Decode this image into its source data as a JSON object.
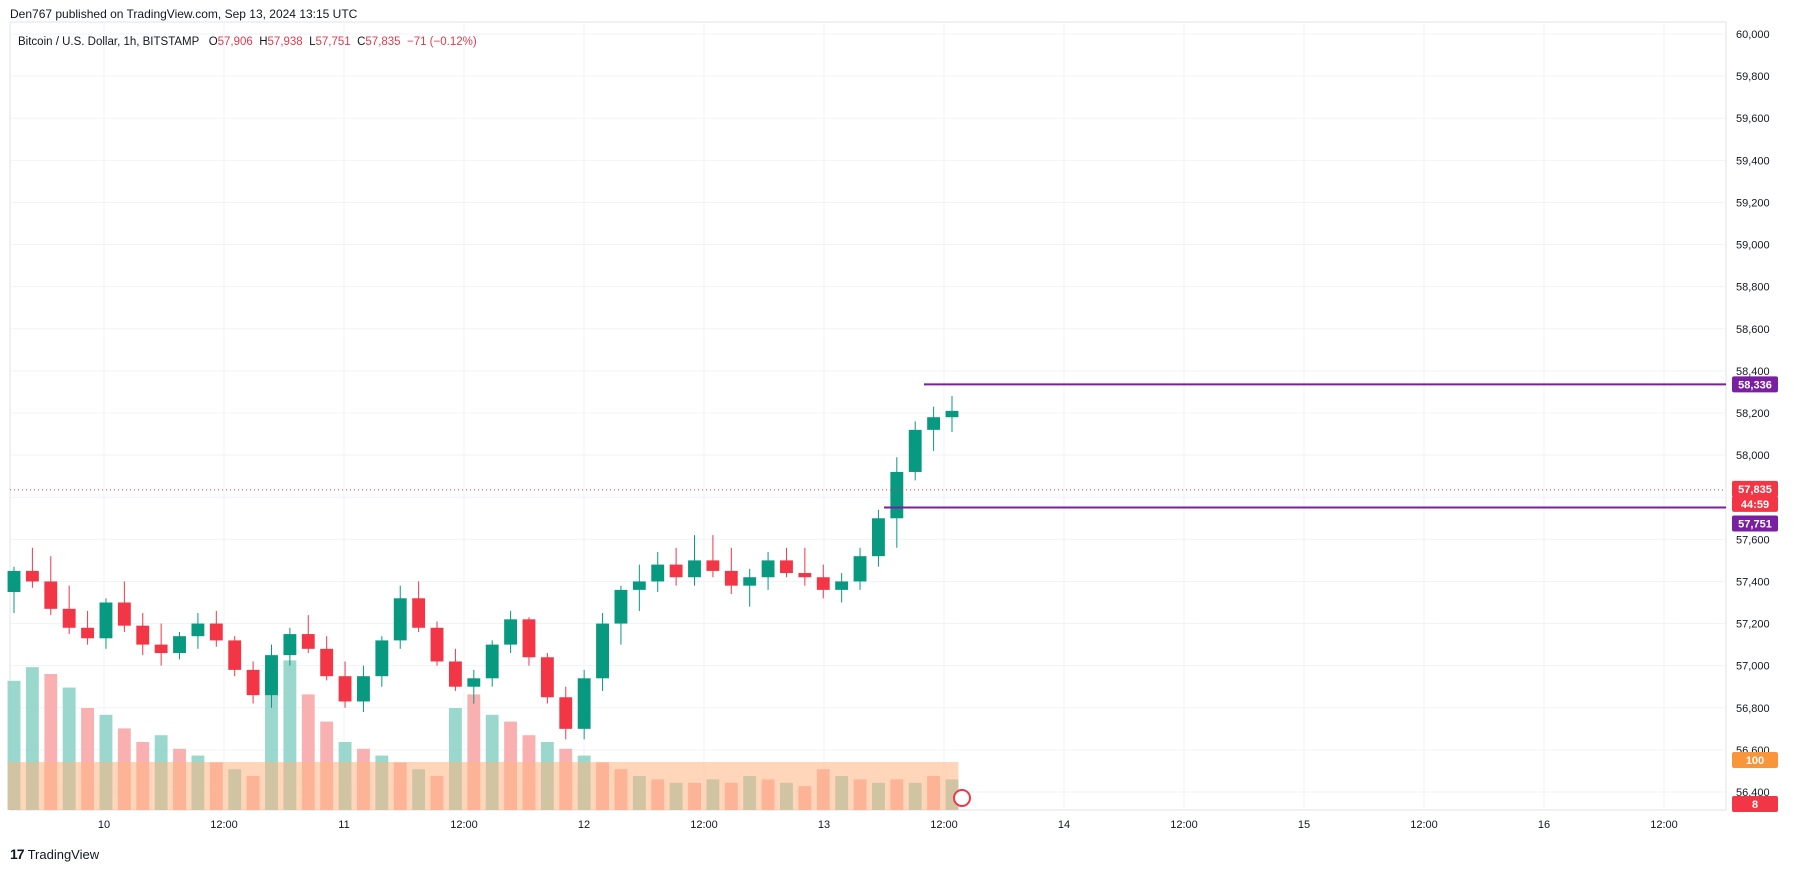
{
  "header": {
    "published": "Den767 published on TradingView.com, Sep 13, 2024 13:15 UTC"
  },
  "legend": {
    "symbol": "Bitcoin / U.S. Dollar, 1h, BITSTAMP",
    "open_label": "O",
    "open": "57,906",
    "high_label": "H",
    "high": "57,938",
    "low_label": "L",
    "low": "57,751",
    "close_label": "C",
    "close": "57,835",
    "change": "−71 (−0.12%)"
  },
  "colors": {
    "up": "#089981",
    "down": "#f23645",
    "volume_up": "#8fd3c8",
    "volume_down": "#f7a9a7",
    "volume_ma": "#ffb482",
    "level_line": "#7b1fa2",
    "grid": "#f0f3fa"
  },
  "footer": {
    "brand": "TradingView"
  },
  "chart_data": {
    "type": "candlestick",
    "y_ticks": [
      "60,000",
      "59,800",
      "59,600",
      "59,400",
      "59,200",
      "59,000",
      "58,800",
      "58,600",
      "58,400",
      "58,200",
      "58,000",
      "57,800",
      "57,600",
      "57,400",
      "57,200",
      "57,000",
      "56,800",
      "56,600",
      "56,400"
    ],
    "ylim": [
      56350,
      60020
    ],
    "x_ticks": [
      "10",
      "12:00",
      "11",
      "12:00",
      "12",
      "12:00",
      "13",
      "12:00",
      "14",
      "12:00",
      "15",
      "12:00",
      "16",
      "12:00"
    ],
    "price_labels": {
      "resistance": "58,336",
      "current": "57,835",
      "countdown": "44:59",
      "support": "57,751",
      "volume_ma_value": "100",
      "volume_value": "8"
    },
    "levels": {
      "resistance": 58336,
      "support": 57751,
      "current": 57835
    },
    "candles": [
      [
        57350,
        57470,
        57250,
        57450
      ],
      [
        57450,
        57560,
        57370,
        57400
      ],
      [
        57400,
        57520,
        57240,
        57270
      ],
      [
        57270,
        57380,
        57150,
        57180
      ],
      [
        57180,
        57260,
        57100,
        57130
      ],
      [
        57130,
        57320,
        57080,
        57300
      ],
      [
        57300,
        57400,
        57160,
        57190
      ],
      [
        57190,
        57250,
        57050,
        57100
      ],
      [
        57100,
        57200,
        57000,
        57060
      ],
      [
        57060,
        57160,
        57030,
        57140
      ],
      [
        57140,
        57250,
        57080,
        57200
      ],
      [
        57200,
        57260,
        57090,
        57120
      ],
      [
        57120,
        57140,
        56950,
        56980
      ],
      [
        56980,
        57020,
        56820,
        56860
      ],
      [
        56860,
        57100,
        56800,
        57050
      ],
      [
        57050,
        57180,
        57000,
        57150
      ],
      [
        57150,
        57240,
        57060,
        57080
      ],
      [
        57080,
        57140,
        56930,
        56950
      ],
      [
        56950,
        57020,
        56800,
        56830
      ],
      [
        56830,
        57000,
        56780,
        56950
      ],
      [
        56950,
        57140,
        56900,
        57120
      ],
      [
        57120,
        57380,
        57080,
        57320
      ],
      [
        57320,
        57400,
        57160,
        57180
      ],
      [
        57180,
        57210,
        57000,
        57020
      ],
      [
        57020,
        57080,
        56880,
        56900
      ],
      [
        56900,
        56980,
        56820,
        56940
      ],
      [
        56940,
        57120,
        56900,
        57100
      ],
      [
        57100,
        57260,
        57060,
        57220
      ],
      [
        57220,
        57230,
        57000,
        57040
      ],
      [
        57040,
        57060,
        56820,
        56850
      ],
      [
        56850,
        56900,
        56650,
        56700
      ],
      [
        56700,
        56980,
        56650,
        56940
      ],
      [
        56940,
        57250,
        56880,
        57200
      ],
      [
        57200,
        57380,
        57100,
        57360
      ],
      [
        57360,
        57480,
        57260,
        57400
      ],
      [
        57400,
        57540,
        57350,
        57480
      ],
      [
        57480,
        57560,
        57380,
        57420
      ],
      [
        57420,
        57620,
        57380,
        57500
      ],
      [
        57500,
        57620,
        57420,
        57450
      ],
      [
        57450,
        57560,
        57340,
        57380
      ],
      [
        57380,
        57460,
        57280,
        57420
      ],
      [
        57420,
        57540,
        57360,
        57500
      ],
      [
        57500,
        57560,
        57420,
        57440
      ],
      [
        57440,
        57560,
        57380,
        57420
      ],
      [
        57420,
        57480,
        57320,
        57360
      ],
      [
        57360,
        57440,
        57300,
        57400
      ],
      [
        57400,
        57560,
        57360,
        57520
      ],
      [
        57520,
        57740,
        57470,
        57700
      ],
      [
        57700,
        57990,
        57560,
        57920
      ],
      [
        57920,
        58160,
        57880,
        58120
      ],
      [
        58120,
        58230,
        58020,
        58180
      ],
      [
        58180,
        58280,
        58110,
        58210
      ]
    ],
    "volumes": [
      [
        38,
        "up"
      ],
      [
        42,
        "up"
      ],
      [
        40,
        "down"
      ],
      [
        36,
        "up"
      ],
      [
        30,
        "down"
      ],
      [
        28,
        "up"
      ],
      [
        24,
        "down"
      ],
      [
        20,
        "down"
      ],
      [
        22,
        "up"
      ],
      [
        18,
        "down"
      ],
      [
        16,
        "up"
      ],
      [
        14,
        "down"
      ],
      [
        12,
        "up"
      ],
      [
        10,
        "down"
      ],
      [
        40,
        "up"
      ],
      [
        44,
        "up"
      ],
      [
        34,
        "down"
      ],
      [
        26,
        "down"
      ],
      [
        20,
        "up"
      ],
      [
        18,
        "down"
      ],
      [
        16,
        "up"
      ],
      [
        14,
        "down"
      ],
      [
        12,
        "up"
      ],
      [
        10,
        "down"
      ],
      [
        30,
        "up"
      ],
      [
        34,
        "down"
      ],
      [
        28,
        "up"
      ],
      [
        26,
        "down"
      ],
      [
        22,
        "down"
      ],
      [
        20,
        "up"
      ],
      [
        18,
        "down"
      ],
      [
        16,
        "up"
      ],
      [
        14,
        "down"
      ],
      [
        12,
        "down"
      ],
      [
        10,
        "up"
      ],
      [
        9,
        "down"
      ],
      [
        8,
        "up"
      ],
      [
        8,
        "down"
      ],
      [
        9,
        "up"
      ],
      [
        8,
        "down"
      ],
      [
        10,
        "up"
      ],
      [
        9,
        "down"
      ],
      [
        8,
        "up"
      ],
      [
        7,
        "down"
      ],
      [
        12,
        "down"
      ],
      [
        10,
        "up"
      ],
      [
        9,
        "down"
      ],
      [
        8,
        "up"
      ],
      [
        9,
        "down"
      ],
      [
        8,
        "up"
      ],
      [
        10,
        "down"
      ],
      [
        9,
        "up"
      ]
    ]
  }
}
